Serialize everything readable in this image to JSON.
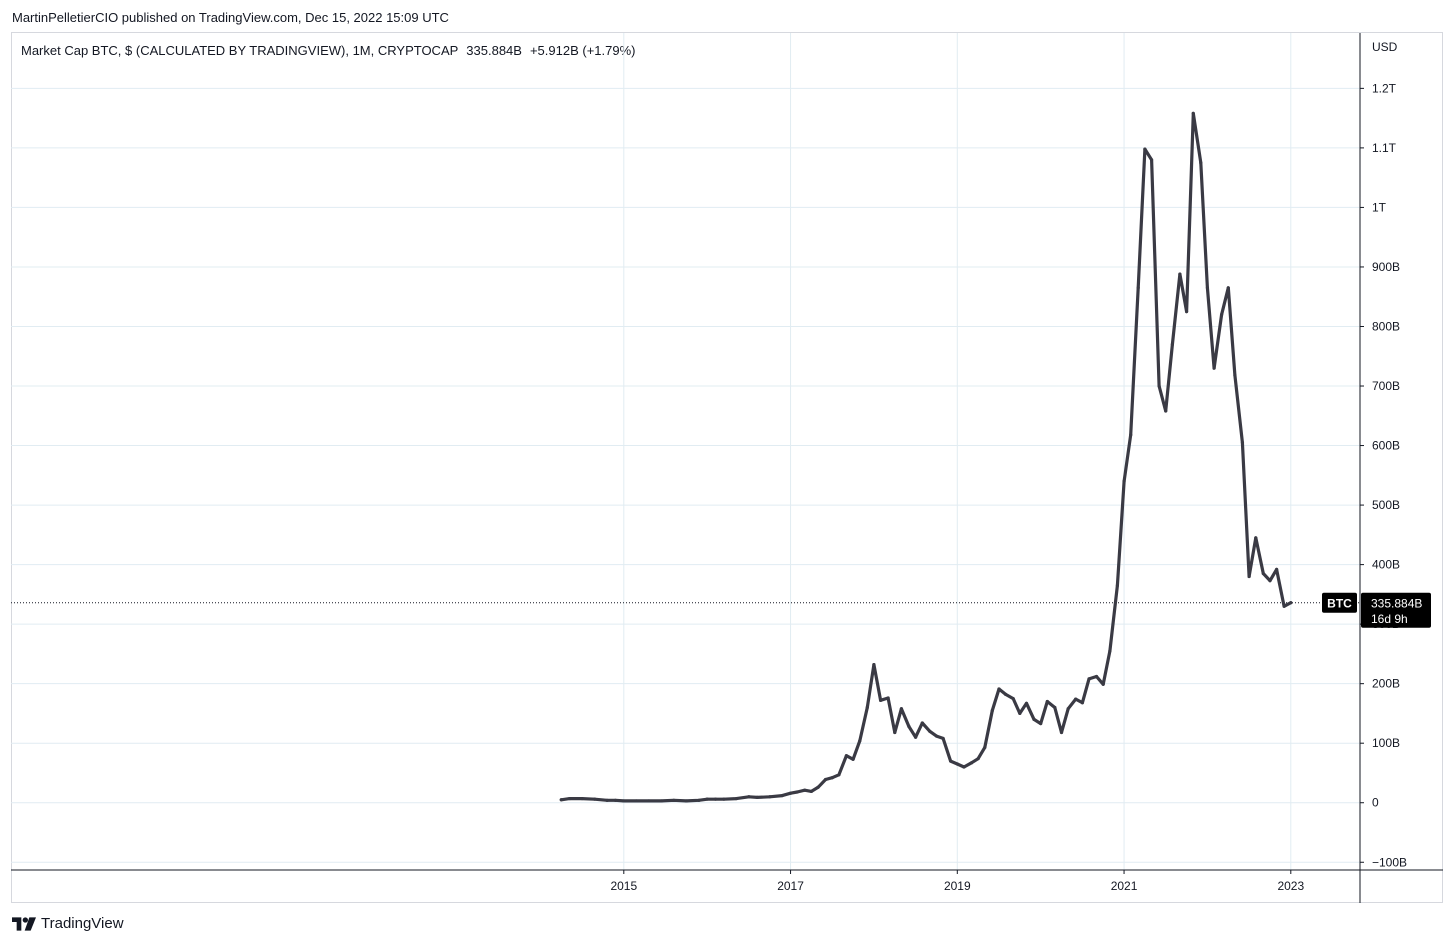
{
  "header": {
    "published_line": "MartinPelletierCIO published on TradingView.com, Dec 15, 2022 15:09 UTC"
  },
  "legend": {
    "symbol_text": "Market Cap BTC, $ (CALCULATED BY TRADINGVIEW), 1M, CRYPTOCAP",
    "last_value": "335.884B",
    "change": "+5.912B (+1.79%)"
  },
  "price_tag": {
    "symbol": "BTC",
    "value": "335.884B",
    "countdown": "16d 9h"
  },
  "footer": {
    "brand": "TradingView"
  },
  "colors": {
    "line": "#3a3a44",
    "grid": "#e1ecf2",
    "tag_bg": "#000000",
    "tag_text": "#ffffff"
  },
  "chart_data": {
    "type": "line",
    "title": "Market Cap BTC, $ (CALCULATED BY TRADINGVIEW), 1M, CRYPTOCAP",
    "xlabel": "",
    "ylabel": "USD",
    "unit": "USD",
    "grid": true,
    "yticks": [
      {
        "value": -100,
        "label": "−100B"
      },
      {
        "value": 0,
        "label": "0"
      },
      {
        "value": 100,
        "label": "100B"
      },
      {
        "value": 200,
        "label": "200B"
      },
      {
        "value": 300,
        "label": "300B"
      },
      {
        "value": 400,
        "label": "400B"
      },
      {
        "value": 500,
        "label": "500B"
      },
      {
        "value": 600,
        "label": "600B"
      },
      {
        "value": 700,
        "label": "700B"
      },
      {
        "value": 800,
        "label": "800B"
      },
      {
        "value": 900,
        "label": "900B"
      },
      {
        "value": 1000,
        "label": "1T"
      },
      {
        "value": 1100,
        "label": "1.1T"
      },
      {
        "value": 1200,
        "label": "1.2T"
      }
    ],
    "xticks": [
      {
        "value": 2015,
        "label": "2015"
      },
      {
        "value": 2017,
        "label": "2017"
      },
      {
        "value": 2019,
        "label": "2019"
      },
      {
        "value": 2021,
        "label": "2021"
      },
      {
        "value": 2023,
        "label": "2023"
      }
    ],
    "xlim": [
      2007.65,
      2023.83
    ],
    "ylim": [
      -113,
      1293
    ],
    "current_value": 335.884,
    "series": [
      {
        "name": "BTC",
        "points": [
          [
            2014.25,
            5
          ],
          [
            2014.35,
            7
          ],
          [
            2014.5,
            7
          ],
          [
            2014.65,
            6
          ],
          [
            2014.8,
            4
          ],
          [
            2014.9,
            4
          ],
          [
            2015.0,
            3
          ],
          [
            2015.15,
            3
          ],
          [
            2015.3,
            3
          ],
          [
            2015.45,
            3
          ],
          [
            2015.6,
            4
          ],
          [
            2015.75,
            3
          ],
          [
            2015.9,
            4
          ],
          [
            2016.0,
            6
          ],
          [
            2016.1,
            6
          ],
          [
            2016.2,
            6
          ],
          [
            2016.35,
            7
          ],
          [
            2016.5,
            10
          ],
          [
            2016.6,
            9
          ],
          [
            2016.75,
            10
          ],
          [
            2016.9,
            12
          ],
          [
            2017.0,
            16
          ],
          [
            2017.08,
            18
          ],
          [
            2017.17,
            21
          ],
          [
            2017.25,
            19
          ],
          [
            2017.33,
            26
          ],
          [
            2017.42,
            39
          ],
          [
            2017.5,
            42
          ],
          [
            2017.58,
            47
          ],
          [
            2017.67,
            79
          ],
          [
            2017.75,
            73
          ],
          [
            2017.83,
            104
          ],
          [
            2017.92,
            160
          ],
          [
            2018.0,
            232
          ],
          [
            2018.08,
            172
          ],
          [
            2018.17,
            176
          ],
          [
            2018.25,
            118
          ],
          [
            2018.33,
            158
          ],
          [
            2018.42,
            128
          ],
          [
            2018.5,
            110
          ],
          [
            2018.58,
            134
          ],
          [
            2018.67,
            120
          ],
          [
            2018.75,
            112
          ],
          [
            2018.83,
            108
          ],
          [
            2018.92,
            70
          ],
          [
            2019.0,
            65
          ],
          [
            2019.08,
            60
          ],
          [
            2019.17,
            67
          ],
          [
            2019.25,
            74
          ],
          [
            2019.33,
            93
          ],
          [
            2019.42,
            155
          ],
          [
            2019.5,
            191
          ],
          [
            2019.58,
            182
          ],
          [
            2019.67,
            175
          ],
          [
            2019.75,
            150
          ],
          [
            2019.83,
            167
          ],
          [
            2019.92,
            140
          ],
          [
            2020.0,
            133
          ],
          [
            2020.08,
            170
          ],
          [
            2020.17,
            160
          ],
          [
            2020.25,
            118
          ],
          [
            2020.33,
            158
          ],
          [
            2020.42,
            174
          ],
          [
            2020.5,
            168
          ],
          [
            2020.58,
            208
          ],
          [
            2020.67,
            212
          ],
          [
            2020.75,
            199
          ],
          [
            2020.83,
            255
          ],
          [
            2020.92,
            365
          ],
          [
            2021.0,
            540
          ],
          [
            2021.08,
            618
          ],
          [
            2021.17,
            865
          ],
          [
            2021.25,
            1098
          ],
          [
            2021.33,
            1080
          ],
          [
            2021.42,
            700
          ],
          [
            2021.5,
            658
          ],
          [
            2021.58,
            770
          ],
          [
            2021.67,
            888
          ],
          [
            2021.75,
            825
          ],
          [
            2021.83,
            1158
          ],
          [
            2021.92,
            1075
          ],
          [
            2022.0,
            865
          ],
          [
            2022.08,
            730
          ],
          [
            2022.17,
            820
          ],
          [
            2022.25,
            865
          ],
          [
            2022.33,
            718
          ],
          [
            2022.42,
            605
          ],
          [
            2022.5,
            380
          ],
          [
            2022.58,
            445
          ],
          [
            2022.67,
            385
          ],
          [
            2022.75,
            373
          ],
          [
            2022.83,
            392
          ],
          [
            2022.92,
            330
          ],
          [
            2023.0,
            336
          ]
        ]
      }
    ]
  }
}
